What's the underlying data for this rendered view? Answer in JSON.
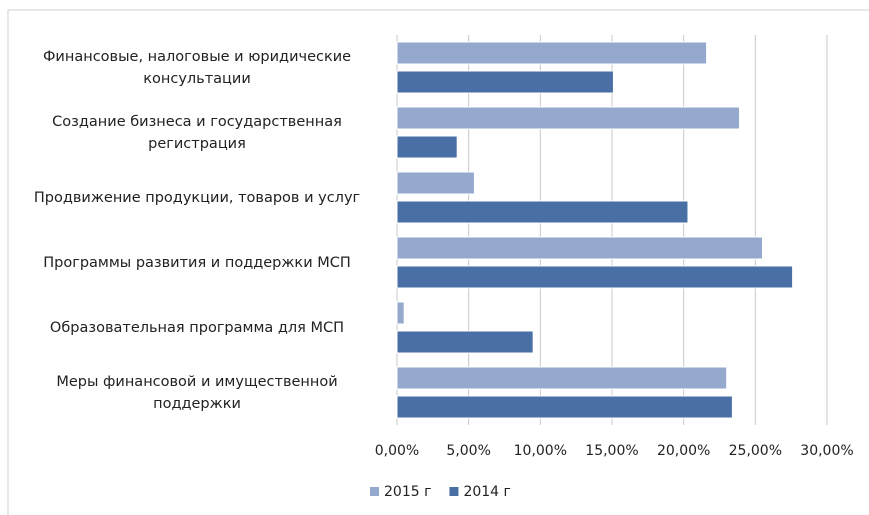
{
  "chart_data": {
    "type": "barh",
    "categories": [
      "Финансовые, налоговые и юридические консультации",
      "Создание бизнеса и государственная регистрация",
      "Продвижение продукции, товаров и услуг",
      "Программы развития и поддержки МСП",
      "Образовательная программа для МСП",
      "Меры финансовой и имущественной поддержки"
    ],
    "series": [
      {
        "name": "2015 г",
        "color": "#95a9cf",
        "values": [
          21.6,
          23.9,
          5.4,
          25.5,
          0.5,
          23.0
        ]
      },
      {
        "name": "2014 г",
        "color": "#4a6fa5",
        "values": [
          15.1,
          4.2,
          20.3,
          27.6,
          9.5,
          23.4
        ]
      }
    ],
    "xlim": [
      0,
      30
    ],
    "xticks": [
      {
        "value": 0,
        "label": "0,00%"
      },
      {
        "value": 5,
        "label": "5,00%"
      },
      {
        "value": 10,
        "label": "10,00%"
      },
      {
        "value": 15,
        "label": "15,00%"
      },
      {
        "value": 20,
        "label": "20,00%"
      },
      {
        "value": 25,
        "label": "25,00%"
      },
      {
        "value": 30,
        "label": "30,00%"
      }
    ],
    "grid": true,
    "legend": "bottom"
  }
}
